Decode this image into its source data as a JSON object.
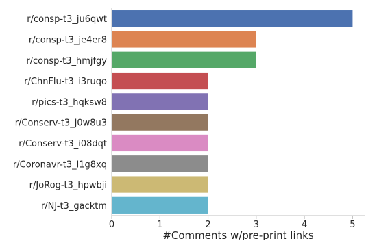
{
  "chart_data": {
    "type": "bar",
    "orientation": "horizontal",
    "categories": [
      "r/consp-t3_ju6qwt",
      "r/consp-t3_je4er8",
      "r/consp-t3_hmjfgy",
      "r/ChnFlu-t3_i3ruqo",
      "r/pics-t3_hqksw8",
      "r/Conserv-t3_j0w8u3",
      "r/Conserv-t3_i08dqt",
      "r/Coronavr-t3_i1g8xq",
      "r/JoRog-t3_hpwbji",
      "r/NJ-t3_gacktm"
    ],
    "values": [
      5,
      3,
      3,
      2,
      2,
      2,
      2,
      2,
      2,
      2
    ],
    "colors": [
      "#4c72b0",
      "#dd8452",
      "#55a868",
      "#c44e52",
      "#8172b3",
      "#937860",
      "#da8bc3",
      "#8c8c8c",
      "#ccb974",
      "#64b5cd"
    ],
    "xlabel": "#Comments w/pre-print links",
    "ylabel": "",
    "xlim": [
      0,
      5.25
    ],
    "xticks": [
      0,
      1,
      2,
      3,
      4,
      5
    ],
    "grid": false
  }
}
